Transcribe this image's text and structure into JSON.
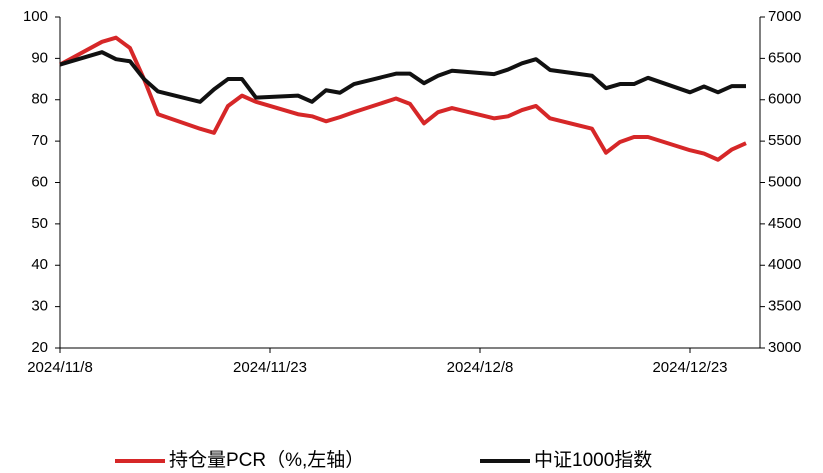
{
  "chart_data": {
    "type": "line",
    "x": [
      "2024/11/8",
      "2024/11/11",
      "2024/11/12",
      "2024/11/13",
      "2024/11/14",
      "2024/11/15",
      "2024/11/18",
      "2024/11/19",
      "2024/11/20",
      "2024/11/21",
      "2024/11/22",
      "2024/11/25",
      "2024/11/26",
      "2024/11/27",
      "2024/11/28",
      "2024/11/29",
      "2024/12/2",
      "2024/12/3",
      "2024/12/4",
      "2024/12/5",
      "2024/12/6",
      "2024/12/9",
      "2024/12/10",
      "2024/12/11",
      "2024/12/12",
      "2024/12/13",
      "2024/12/16",
      "2024/12/17",
      "2024/12/18",
      "2024/12/19",
      "2024/12/20",
      "2024/12/23",
      "2024/12/24",
      "2024/12/25",
      "2024/12/26",
      "2024/12/27"
    ],
    "series": [
      {
        "name": "持仓量PCR（%,左轴）",
        "color": "#d62728",
        "axis": "y",
        "values": [
          88.5,
          94,
          95,
          92.5,
          85,
          76.5,
          73,
          72,
          78.5,
          81,
          79.5,
          76.5,
          76,
          74.8,
          75.8,
          77,
          80.3,
          79,
          74.3,
          77,
          78,
          75.5,
          76,
          77.5,
          78.5,
          75.5,
          73,
          67.2,
          69.8,
          71,
          71,
          67.8,
          67,
          65.5,
          68,
          69.5
        ]
      },
      {
        "name": "中证1000指数",
        "color": "#111111",
        "axis": "y2",
        "values": [
          6425,
          6575,
          6490,
          6465,
          6250,
          6100,
          5975,
          6125,
          6250,
          6250,
          6025,
          6050,
          5975,
          6115,
          6085,
          6190,
          6315,
          6315,
          6200,
          6290,
          6350,
          6310,
          6365,
          6440,
          6490,
          6360,
          6290,
          6140,
          6190,
          6190,
          6265,
          6090,
          6160,
          6090,
          6165,
          6165
        ]
      }
    ],
    "xlim": [
      "2024/11/8",
      "2024/12/28"
    ],
    "xticks": [
      "2024/11/8",
      "2024/11/23",
      "2024/12/8",
      "2024/12/23"
    ],
    "ylim": [
      20,
      100
    ],
    "yticks": [
      20,
      30,
      40,
      50,
      60,
      70,
      80,
      90,
      100
    ],
    "y2lim": [
      3000,
      7000
    ],
    "y2ticks": [
      3000,
      3500,
      4000,
      4500,
      5000,
      5500,
      6000,
      6500,
      7000
    ],
    "legend": "bottom"
  }
}
